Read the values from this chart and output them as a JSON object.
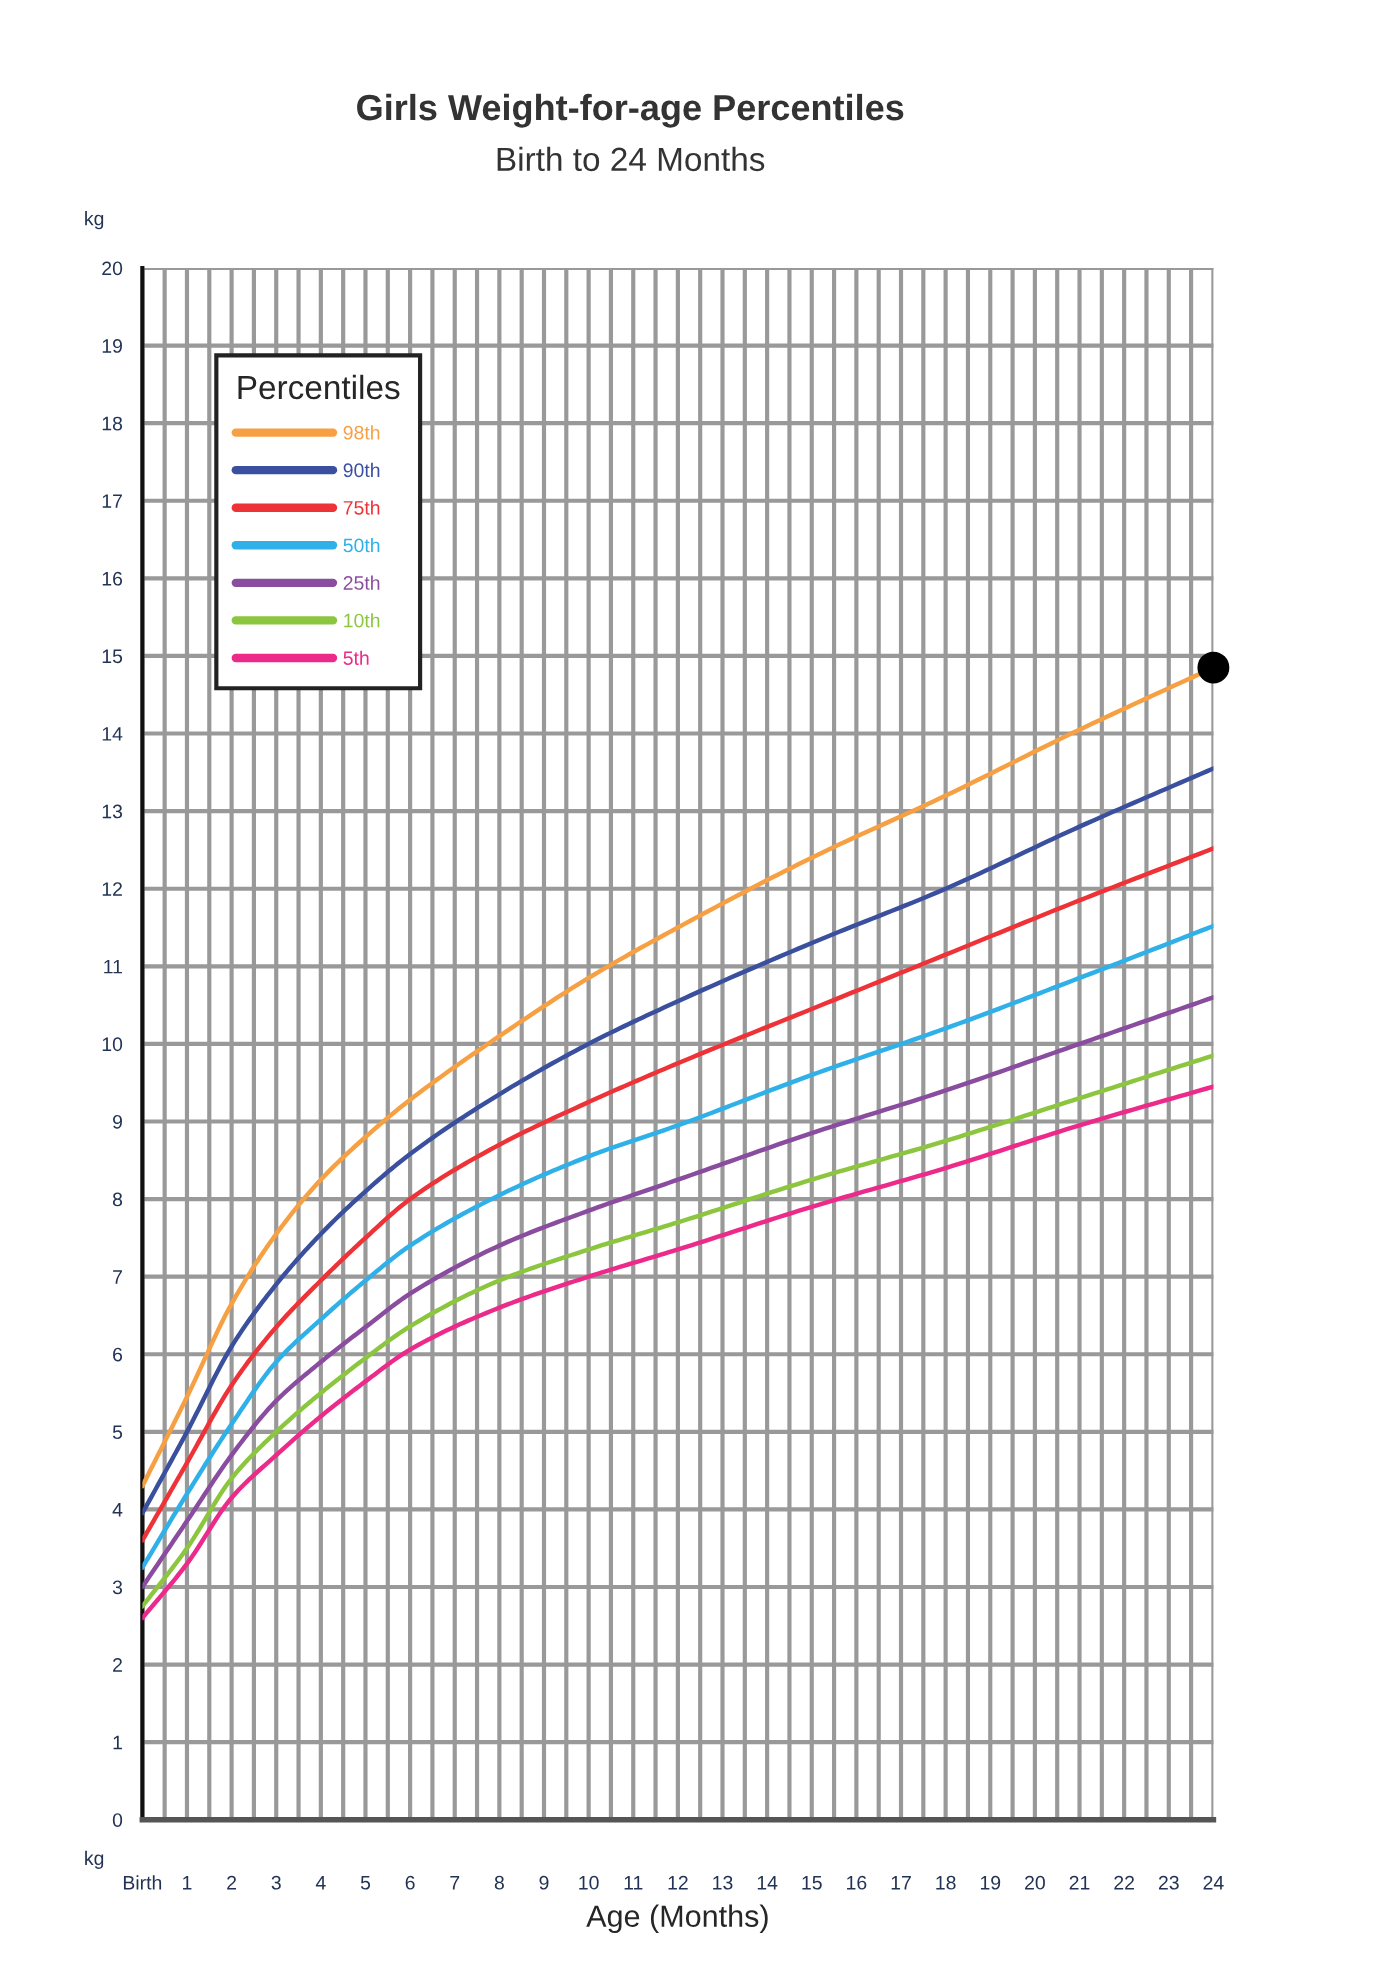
{
  "chart_data": {
    "type": "line",
    "title": "Girls Weight-for-age Percentiles",
    "subtitle": "Birth to 24 Months",
    "xlabel": "Age (Months)",
    "ylabel": "kg",
    "annotations": [
      "kg"
    ],
    "legend_title": "Percentiles",
    "legend": "top left",
    "grid": true,
    "marker": "none",
    "line_style": "solid",
    "x": [
      0,
      1,
      2,
      3,
      4,
      5,
      6,
      8,
      10,
      12,
      15,
      18,
      21,
      24
    ],
    "xlim": [
      0,
      24
    ],
    "ylim": [
      0,
      20
    ],
    "xticks": [
      {
        "value": 0,
        "label": "Birth"
      },
      1,
      2,
      3,
      4,
      5,
      6,
      7,
      8,
      9,
      10,
      11,
      12,
      13,
      14,
      15,
      16,
      17,
      18,
      19,
      20,
      21,
      22,
      23,
      24
    ],
    "yticks": [
      0,
      1,
      2,
      3,
      4,
      5,
      6,
      7,
      8,
      9,
      10,
      11,
      12,
      13,
      14,
      15,
      16,
      17,
      18,
      19,
      20
    ],
    "series": [
      {
        "name": "98th",
        "color": "#f7a043",
        "values": [
          4.3,
          5.45,
          6.65,
          7.55,
          8.25,
          8.8,
          9.28,
          10.1,
          10.85,
          11.5,
          12.4,
          13.2,
          14.05,
          14.85
        ]
      },
      {
        "name": "90th",
        "color": "#3a4f9e",
        "values": [
          3.95,
          5.0,
          6.1,
          6.9,
          7.55,
          8.1,
          8.58,
          9.35,
          10.0,
          10.55,
          11.3,
          12.0,
          12.8,
          13.55
        ]
      },
      {
        "name": "75th",
        "color": "#ee3338",
        "values": [
          3.6,
          4.6,
          5.6,
          6.35,
          6.95,
          7.5,
          8.0,
          8.7,
          9.25,
          9.75,
          10.45,
          11.15,
          11.85,
          12.52
        ]
      },
      {
        "name": "50th",
        "color": "#2fb0e8",
        "values": [
          3.25,
          4.2,
          5.1,
          5.9,
          6.45,
          6.95,
          7.4,
          8.05,
          8.55,
          8.95,
          9.6,
          10.2,
          10.85,
          11.52
        ]
      },
      {
        "name": "25th",
        "color": "#8a4c9e",
        "values": [
          3.0,
          3.85,
          4.7,
          5.4,
          5.9,
          6.35,
          6.78,
          7.4,
          7.85,
          8.25,
          8.85,
          9.4,
          10.0,
          10.6
        ]
      },
      {
        "name": "10th",
        "color": "#8cc63f",
        "values": [
          2.75,
          3.5,
          4.4,
          5.0,
          5.5,
          5.95,
          6.36,
          6.95,
          7.35,
          7.7,
          8.25,
          8.75,
          9.3,
          9.85
        ]
      },
      {
        "name": "5th",
        "color": "#ec2a8a",
        "values": [
          2.6,
          3.3,
          4.15,
          4.7,
          5.2,
          5.65,
          6.06,
          6.6,
          7.0,
          7.35,
          7.9,
          8.4,
          8.95,
          9.45
        ]
      },
      {
        "type": "scatter",
        "marker": "circle",
        "color": "#000000",
        "x": [
          24
        ],
        "values": [
          14.85
        ]
      }
    ]
  }
}
